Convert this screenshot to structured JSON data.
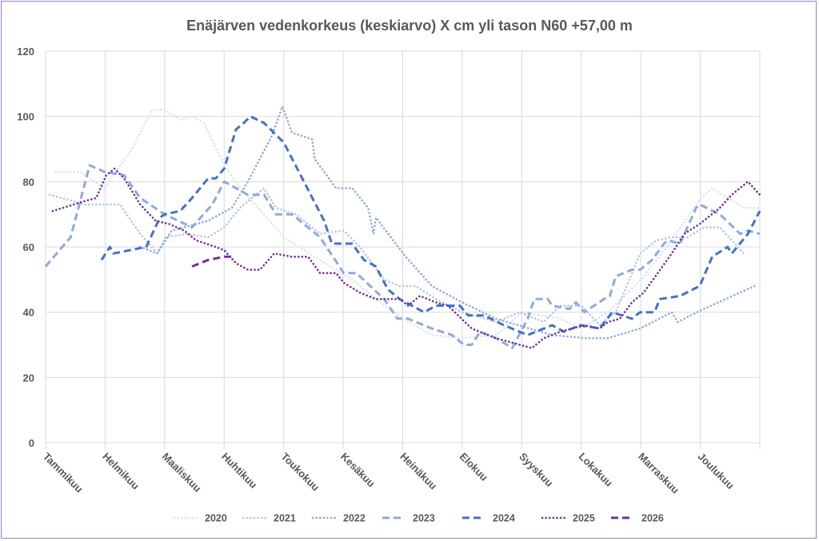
{
  "chart_data": {
    "type": "line",
    "title": "Enäjärven vedenkorkeus (keskiarvo) X cm yli tason N60 +57,00 m",
    "xlabel": "",
    "ylabel": "",
    "ylim": [
      0,
      120
    ],
    "yticks": [
      "0",
      "20",
      "40",
      "60",
      "80",
      "100",
      "120"
    ],
    "xlim_months": [
      0,
      12
    ],
    "categories": [
      "Tammikuu",
      "Helmikuu",
      "Maaliskuu",
      "Huhtikuu",
      "Toukokuu",
      "Kesäkuu",
      "Heinäkuu",
      "Elokuu",
      "Syyskuu",
      "Lokakuu",
      "Marraskuu",
      "Joulukuu"
    ],
    "grid": true,
    "legend_position": "bottom",
    "series": [
      {
        "name": "2020",
        "color": "#dbe2f2",
        "style": "dotted",
        "points": [
          [
            0.17,
            83
          ],
          [
            0.58,
            83
          ],
          [
            0.99,
            78
          ],
          [
            1.45,
            90
          ],
          [
            1.79,
            102
          ],
          [
            2.0,
            102
          ],
          [
            2.26,
            99
          ],
          [
            2.46,
            100
          ],
          [
            2.66,
            98
          ],
          [
            3.0,
            85
          ],
          [
            3.27,
            78
          ],
          [
            3.67,
            70
          ],
          [
            4.0,
            63
          ],
          [
            4.61,
            56
          ],
          [
            5.15,
            50
          ],
          [
            5.55,
            44
          ],
          [
            6.01,
            38
          ],
          [
            6.49,
            33
          ],
          [
            7.0,
            32
          ],
          [
            7.57,
            33
          ],
          [
            8.01,
            40
          ],
          [
            8.64,
            38
          ],
          [
            9.0,
            35
          ],
          [
            9.45,
            40
          ],
          [
            10.01,
            50
          ],
          [
            10.52,
            62
          ],
          [
            11.01,
            75
          ],
          [
            11.2,
            78
          ],
          [
            11.73,
            72
          ],
          [
            12.0,
            72
          ]
        ]
      },
      {
        "name": "2021",
        "color": "#b4c6e7",
        "style": "dotted",
        "points": [
          [
            0.07,
            76
          ],
          [
            0.67,
            73
          ],
          [
            1.25,
            73
          ],
          [
            1.59,
            64
          ],
          [
            1.88,
            58
          ],
          [
            2.02,
            63
          ],
          [
            2.37,
            64
          ],
          [
            2.73,
            63
          ],
          [
            3.0,
            66
          ],
          [
            3.27,
            72
          ],
          [
            3.67,
            78
          ],
          [
            3.87,
            72
          ],
          [
            4.21,
            70
          ],
          [
            4.61,
            64
          ],
          [
            5.01,
            65
          ],
          [
            5.28,
            60
          ],
          [
            5.69,
            50
          ],
          [
            5.95,
            48
          ],
          [
            6.22,
            48
          ],
          [
            6.56,
            44
          ],
          [
            7.0,
            40
          ],
          [
            7.57,
            37
          ],
          [
            7.97,
            40
          ],
          [
            8.37,
            37
          ],
          [
            8.64,
            42
          ],
          [
            9.0,
            42
          ],
          [
            9.31,
            36
          ],
          [
            9.58,
            40
          ],
          [
            9.99,
            58
          ],
          [
            10.26,
            62
          ],
          [
            10.52,
            63
          ],
          [
            10.79,
            63
          ],
          [
            11.06,
            66
          ],
          [
            11.33,
            66
          ],
          [
            11.73,
            58
          ]
        ]
      },
      {
        "name": "2022",
        "color": "#8ea9db",
        "style": "dotted",
        "points": [
          [
            1.59,
            60
          ],
          [
            1.87,
            58
          ],
          [
            2.12,
            65
          ],
          [
            2.73,
            68
          ],
          [
            3.13,
            72
          ],
          [
            3.4,
            80
          ],
          [
            3.8,
            94
          ],
          [
            3.98,
            103
          ],
          [
            4.14,
            95
          ],
          [
            4.48,
            93
          ],
          [
            4.52,
            87
          ],
          [
            4.88,
            78
          ],
          [
            5.15,
            78
          ],
          [
            5.42,
            72
          ],
          [
            5.51,
            64
          ],
          [
            5.55,
            69
          ],
          [
            6.05,
            57
          ],
          [
            6.49,
            48
          ],
          [
            7.0,
            43
          ],
          [
            7.57,
            38
          ],
          [
            8.51,
            33
          ],
          [
            9.09,
            32
          ],
          [
            9.45,
            32
          ],
          [
            9.99,
            35
          ],
          [
            10.52,
            40
          ],
          [
            10.62,
            37
          ],
          [
            11.06,
            41
          ],
          [
            11.91,
            48
          ]
        ]
      },
      {
        "name": "2023",
        "color": "#8faadc",
        "style": "dashed",
        "points": [
          [
            0,
            54
          ],
          [
            0.42,
            63
          ],
          [
            0.74,
            85
          ],
          [
            0.99,
            83
          ],
          [
            1.32,
            82
          ],
          [
            1.59,
            75
          ],
          [
            2.0,
            70
          ],
          [
            2.46,
            66
          ],
          [
            2.8,
            73
          ],
          [
            3.0,
            80
          ],
          [
            3.4,
            76
          ],
          [
            3.67,
            76
          ],
          [
            3.87,
            70
          ],
          [
            4.14,
            70
          ],
          [
            4.61,
            63
          ],
          [
            5.01,
            52
          ],
          [
            5.22,
            52
          ],
          [
            5.69,
            44
          ],
          [
            5.91,
            38
          ],
          [
            6.09,
            38
          ],
          [
            6.49,
            35
          ],
          [
            6.83,
            33
          ],
          [
            7.03,
            30
          ],
          [
            7.16,
            30
          ],
          [
            7.3,
            34
          ],
          [
            7.57,
            32
          ],
          [
            7.84,
            29
          ],
          [
            8.1,
            38
          ],
          [
            8.21,
            44
          ],
          [
            8.44,
            44
          ],
          [
            8.51,
            42
          ],
          [
            8.8,
            41
          ],
          [
            8.91,
            43
          ],
          [
            9.05,
            40
          ],
          [
            9.38,
            44
          ],
          [
            9.48,
            45
          ],
          [
            9.58,
            51
          ],
          [
            9.85,
            53
          ],
          [
            9.99,
            53
          ],
          [
            10.19,
            56
          ],
          [
            10.39,
            61
          ],
          [
            10.46,
            62
          ],
          [
            10.66,
            61
          ],
          [
            10.93,
            72
          ],
          [
            10.99,
            73
          ],
          [
            11.33,
            70
          ],
          [
            11.67,
            64
          ],
          [
            11.8,
            65
          ],
          [
            12.0,
            64
          ]
        ]
      },
      {
        "name": "2024",
        "color": "#4472c4",
        "style": "dashed",
        "points": [
          [
            0.94,
            56
          ],
          [
            1.08,
            60
          ],
          [
            1.14,
            58
          ],
          [
            1.69,
            60
          ],
          [
            1.92,
            69
          ],
          [
            2.0,
            70
          ],
          [
            2.26,
            71
          ],
          [
            2.46,
            75
          ],
          [
            2.73,
            81
          ],
          [
            2.86,
            81
          ],
          [
            3.0,
            84
          ],
          [
            3.2,
            96
          ],
          [
            3.33,
            98
          ],
          [
            3.44,
            100
          ],
          [
            3.67,
            98
          ],
          [
            4.0,
            92
          ],
          [
            4.34,
            80
          ],
          [
            4.68,
            68
          ],
          [
            4.81,
            61
          ],
          [
            5.15,
            61
          ],
          [
            5.35,
            56
          ],
          [
            5.55,
            54
          ],
          [
            5.75,
            47
          ],
          [
            5.95,
            44
          ],
          [
            6.36,
            40
          ],
          [
            6.56,
            42
          ],
          [
            6.96,
            42
          ],
          [
            7.1,
            39
          ],
          [
            7.37,
            39
          ],
          [
            7.7,
            36
          ],
          [
            8.1,
            33
          ],
          [
            8.51,
            36
          ],
          [
            8.71,
            34
          ],
          [
            8.98,
            36
          ],
          [
            9.31,
            35
          ],
          [
            9.52,
            40
          ],
          [
            9.85,
            38
          ],
          [
            9.99,
            40
          ],
          [
            10.23,
            40
          ],
          [
            10.32,
            44
          ],
          [
            10.66,
            45
          ],
          [
            10.99,
            48
          ],
          [
            11.2,
            57
          ],
          [
            11.46,
            60
          ],
          [
            11.53,
            58
          ],
          [
            11.8,
            64
          ],
          [
            12.0,
            71
          ]
        ]
      },
      {
        "name": "2025",
        "color": "#7030a0",
        "style": "dotted",
        "points": [
          [
            0.12,
            71
          ],
          [
            0.65,
            74
          ],
          [
            0.85,
            75
          ],
          [
            1.02,
            82
          ],
          [
            1.16,
            84
          ],
          [
            1.32,
            81
          ],
          [
            1.59,
            73
          ],
          [
            1.85,
            68
          ],
          [
            2.08,
            67
          ],
          [
            2.33,
            65
          ],
          [
            2.53,
            62
          ],
          [
            2.86,
            60
          ],
          [
            3.0,
            59
          ],
          [
            3.2,
            55
          ],
          [
            3.4,
            53
          ],
          [
            3.6,
            53
          ],
          [
            3.84,
            58
          ],
          [
            4.14,
            57
          ],
          [
            4.41,
            57
          ],
          [
            4.61,
            52
          ],
          [
            4.88,
            52
          ],
          [
            5.01,
            49
          ],
          [
            5.28,
            46
          ],
          [
            5.55,
            44
          ],
          [
            5.95,
            44
          ],
          [
            6.09,
            42
          ],
          [
            6.29,
            45
          ],
          [
            6.56,
            43
          ],
          [
            6.76,
            42
          ],
          [
            7.16,
            35
          ],
          [
            7.57,
            32
          ],
          [
            7.97,
            30
          ],
          [
            8.17,
            29
          ],
          [
            8.37,
            32
          ],
          [
            8.64,
            34
          ],
          [
            9.05,
            36
          ],
          [
            9.31,
            35
          ],
          [
            9.45,
            37
          ],
          [
            9.65,
            38
          ],
          [
            9.85,
            43
          ],
          [
            10.05,
            46
          ],
          [
            10.52,
            58
          ],
          [
            10.73,
            64
          ],
          [
            10.99,
            67
          ],
          [
            11.33,
            72
          ],
          [
            11.53,
            76
          ],
          [
            11.8,
            80
          ],
          [
            12.0,
            76
          ]
        ]
      },
      {
        "name": "2026",
        "color": "#7030a0",
        "style": "dashed",
        "points": [
          [
            2.46,
            54
          ],
          [
            2.73,
            56
          ],
          [
            3.0,
            57
          ],
          [
            3.16,
            57
          ]
        ]
      }
    ]
  }
}
